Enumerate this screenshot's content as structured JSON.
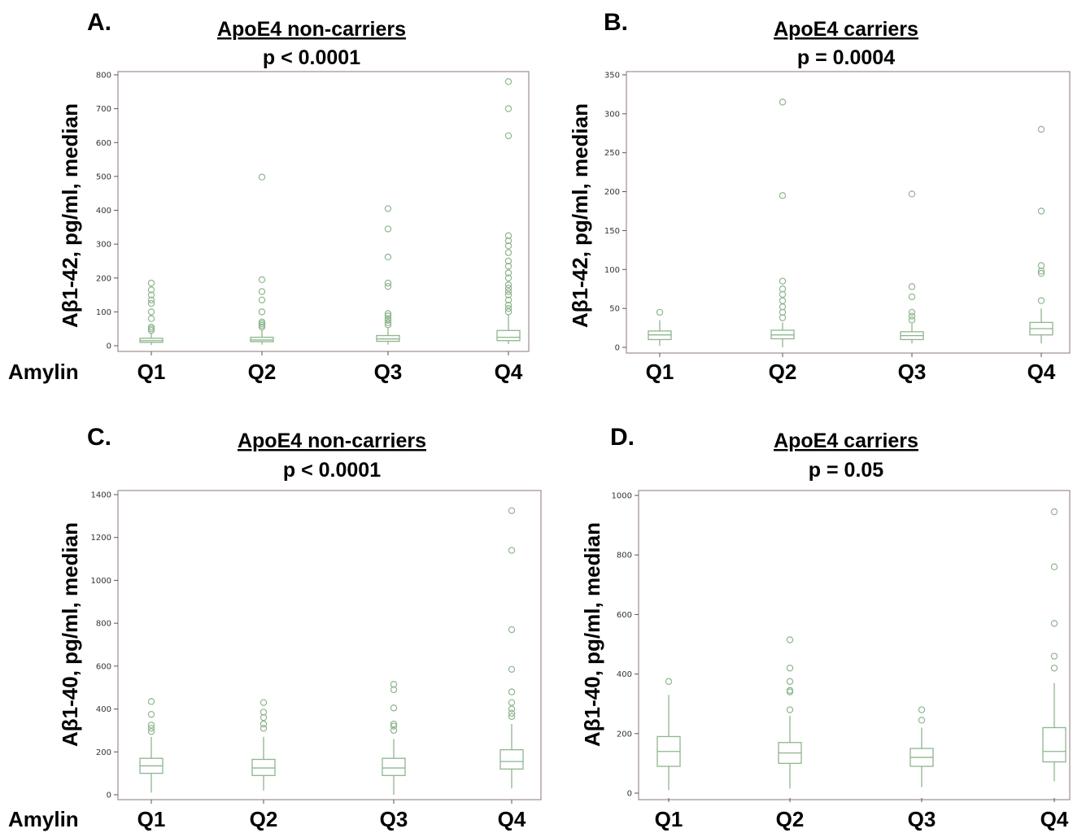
{
  "x_axis_label": "Amylin",
  "chart_data": [
    {
      "type": "box",
      "panel": "A.",
      "title": "ApoE4 non-carriers",
      "subtitle": "p < 0.0001",
      "ylabel": "Aβ1-42, pg/ml, median",
      "ylim": [
        0,
        800
      ],
      "yticks": [
        0,
        100,
        200,
        300,
        400,
        500,
        600,
        700,
        800
      ],
      "categories": [
        "Q1",
        "Q2",
        "Q3",
        "Q4"
      ],
      "boxes": [
        {
          "min": 2,
          "q1": 10,
          "median": 15,
          "q3": 22,
          "max": 38,
          "outliers": [
            45,
            50,
            55,
            80,
            100,
            125,
            135,
            150,
            165,
            185
          ]
        },
        {
          "min": 3,
          "q1": 12,
          "median": 17,
          "q3": 25,
          "max": 45,
          "outliers": [
            55,
            60,
            65,
            70,
            100,
            135,
            160,
            195,
            498
          ]
        },
        {
          "min": 3,
          "q1": 13,
          "median": 20,
          "q3": 30,
          "max": 55,
          "outliers": [
            62,
            68,
            75,
            80,
            88,
            95,
            175,
            185,
            262,
            345,
            405
          ]
        },
        {
          "min": 5,
          "q1": 15,
          "median": 25,
          "q3": 45,
          "max": 90,
          "outliers": [
            100,
            110,
            120,
            135,
            150,
            160,
            170,
            180,
            200,
            215,
            235,
            250,
            275,
            295,
            310,
            325,
            620,
            700,
            780
          ]
        }
      ]
    },
    {
      "type": "box",
      "panel": "B.",
      "title": "ApoE4 carriers",
      "subtitle": "p = 0.0004",
      "ylabel": "Aβ1-42, pg/ml, median",
      "ylim": [
        0,
        350
      ],
      "yticks": [
        0,
        50,
        100,
        150,
        200,
        250,
        300,
        350
      ],
      "categories": [
        "Q1",
        "Q2",
        "Q3",
        "Q4"
      ],
      "boxes": [
        {
          "min": 2,
          "q1": 10,
          "median": 16,
          "q3": 21,
          "max": 35,
          "outliers": [
            45
          ]
        },
        {
          "min": 0,
          "q1": 11,
          "median": 16,
          "q3": 22,
          "max": 32,
          "outliers": [
            38,
            45,
            52,
            60,
            68,
            75,
            85,
            195,
            315
          ]
        },
        {
          "min": 5,
          "q1": 10,
          "median": 15,
          "q3": 20,
          "max": 30,
          "outliers": [
            35,
            40,
            45,
            65,
            78,
            197
          ]
        },
        {
          "min": 5,
          "q1": 16,
          "median": 24,
          "q3": 32,
          "max": 50,
          "outliers": [
            60,
            95,
            98,
            105,
            175,
            280
          ]
        }
      ]
    },
    {
      "type": "box",
      "panel": "C.",
      "title": "ApoE4 non-carriers",
      "subtitle": "p < 0.0001",
      "ylabel": "Aβ1-40, pg/ml, median",
      "ylim": [
        0,
        1400
      ],
      "yticks": [
        0,
        200,
        400,
        600,
        800,
        1000,
        1200,
        1400
      ],
      "categories": [
        "Q1",
        "Q2",
        "Q3",
        "Q4"
      ],
      "boxes": [
        {
          "min": 10,
          "q1": 100,
          "median": 135,
          "q3": 170,
          "max": 270,
          "outliers": [
            295,
            310,
            325,
            375,
            435
          ]
        },
        {
          "min": 20,
          "q1": 90,
          "median": 125,
          "q3": 165,
          "max": 270,
          "outliers": [
            310,
            330,
            360,
            385,
            430
          ]
        },
        {
          "min": 0,
          "q1": 90,
          "median": 125,
          "q3": 170,
          "max": 260,
          "outliers": [
            300,
            320,
            330,
            405,
            490,
            515
          ]
        },
        {
          "min": 30,
          "q1": 120,
          "median": 155,
          "q3": 210,
          "max": 330,
          "outliers": [
            365,
            380,
            400,
            430,
            480,
            585,
            770,
            1140,
            1325
          ]
        }
      ]
    },
    {
      "type": "box",
      "panel": "D.",
      "title": "ApoE4 carriers",
      "subtitle": "p = 0.05",
      "ylabel": "Aβ1-40, pg/ml, median",
      "ylim": [
        0,
        1000
      ],
      "yticks": [
        0,
        200,
        400,
        600,
        800,
        1000
      ],
      "categories": [
        "Q1",
        "Q2",
        "Q3",
        "Q4"
      ],
      "boxes": [
        {
          "min": 10,
          "q1": 90,
          "median": 140,
          "q3": 190,
          "max": 330,
          "outliers": [
            375
          ]
        },
        {
          "min": 15,
          "q1": 100,
          "median": 135,
          "q3": 170,
          "max": 260,
          "outliers": [
            280,
            340,
            345,
            375,
            420,
            515
          ]
        },
        {
          "min": 20,
          "q1": 90,
          "median": 120,
          "q3": 150,
          "max": 220,
          "outliers": [
            245,
            280
          ]
        },
        {
          "min": 40,
          "q1": 105,
          "median": 140,
          "q3": 220,
          "max": 370,
          "outliers": [
            420,
            460,
            570,
            760,
            945
          ]
        }
      ]
    }
  ]
}
